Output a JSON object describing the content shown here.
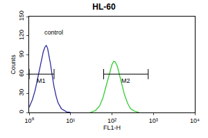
{
  "chart_data": {
    "type": "line",
    "title": "HL-60",
    "x_label": "FL1-H",
    "y_label": "Counts",
    "log": "x",
    "grid": false,
    "xlim": [
      1,
      10000
    ],
    "xticks": [
      {
        "value": 1,
        "label": "10⁰"
      },
      {
        "value": 10,
        "label": "10¹"
      },
      {
        "value": 100,
        "label": "10²"
      },
      {
        "value": 1000,
        "label": "10³"
      },
      {
        "value": 10000,
        "label": "10⁴"
      }
    ],
    "ylim": [
      0,
      150
    ],
    "yticks": [
      0,
      30,
      60,
      90,
      120,
      150
    ],
    "series": [
      {
        "color": "#2b2b9a",
        "x": [
          1,
          1.2,
          1.4,
          1.6,
          1.8,
          2,
          2.2,
          2.4,
          2.6,
          2.8,
          3,
          3.3,
          3.6,
          4,
          4.5,
          5,
          6,
          7,
          8,
          10
        ],
        "values": [
          8,
          20,
          35,
          52,
          68,
          82,
          95,
          102,
          105,
          100,
          90,
          75,
          58,
          40,
          25,
          15,
          6,
          3,
          1,
          0
        ]
      },
      {
        "color": "#33cc33",
        "x": [
          30,
          40,
          50,
          60,
          70,
          80,
          90,
          100,
          110,
          120,
          135,
          150,
          170,
          200,
          240,
          280,
          350,
          450
        ],
        "values": [
          0,
          3,
          10,
          22,
          38,
          52,
          65,
          75,
          80,
          79,
          72,
          60,
          45,
          28,
          14,
          6,
          2,
          0
        ]
      }
    ],
    "gates": [
      {
        "label": "M1",
        "x": [
          1,
          4
        ],
        "y": 60
      },
      {
        "label": "M2",
        "x": [
          63,
          750
        ],
        "y": 60
      }
    ],
    "annotations": [
      {
        "text": "control",
        "x": 4,
        "y": 125
      }
    ]
  }
}
